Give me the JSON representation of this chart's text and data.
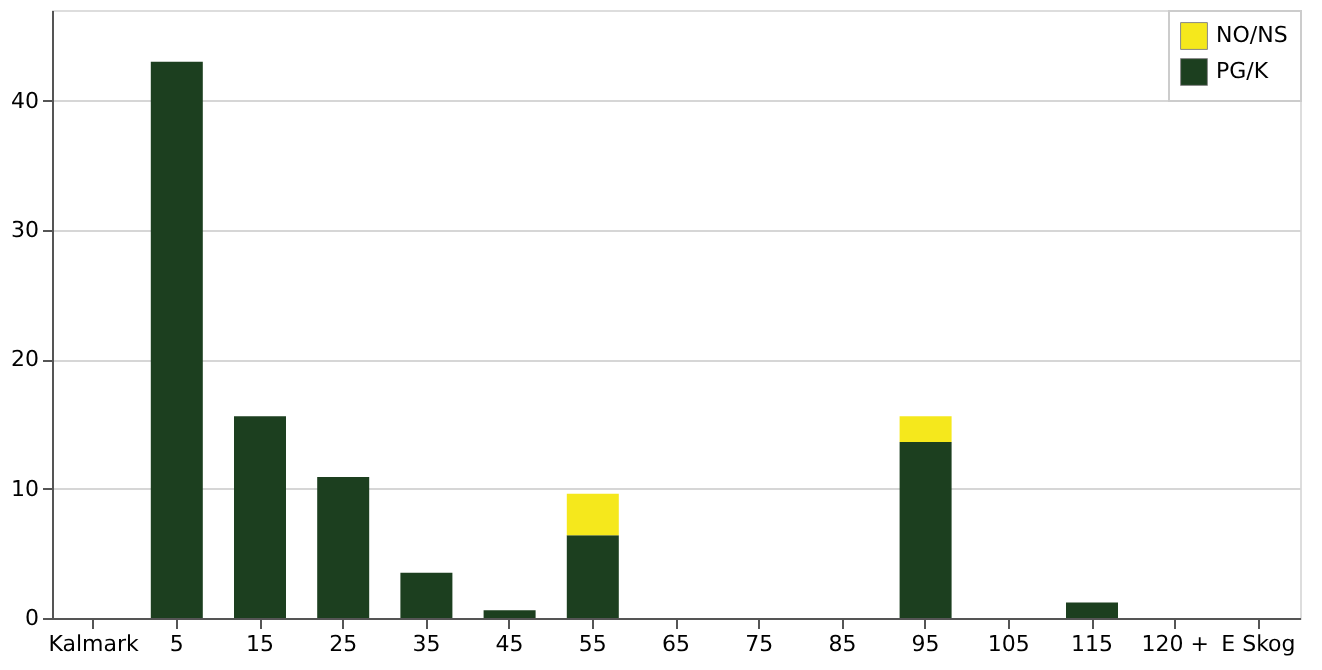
{
  "chart_data": {
    "type": "bar",
    "stacked": true,
    "categories": [
      "Kalmark",
      "5",
      "15",
      "25",
      "35",
      "45",
      "55",
      "65",
      "75",
      "85",
      "95",
      "105",
      "115",
      "120 +",
      "E Skog"
    ],
    "series": [
      {
        "name": "PG/K",
        "color": "#1c3f1f",
        "values": [
          0,
          43,
          15.6,
          10.9,
          3.5,
          0.6,
          6.4,
          0,
          0,
          0,
          13.6,
          0,
          1.2,
          0,
          0
        ]
      },
      {
        "name": "NO/NS",
        "color": "#f5e81c",
        "values": [
          0,
          0,
          0,
          0,
          0,
          0,
          3.2,
          0,
          0,
          0,
          2.0,
          0,
          0,
          0,
          0
        ]
      }
    ],
    "ylim": [
      0,
      47
    ],
    "yticks": [
      0,
      10,
      20,
      30,
      40
    ],
    "grid": "y",
    "legend": "top right"
  }
}
